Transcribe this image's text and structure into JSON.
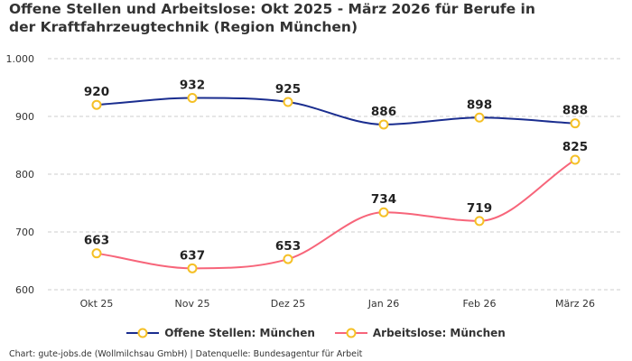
{
  "chart_data": {
    "type": "line",
    "title": "Offene Stellen und Arbeitslose: Okt 2025 - März 2026 für Berufe in der Kraftfahrzeugtechnik (Region München)",
    "categories": [
      "Okt 25",
      "Nov 25",
      "Dez 25",
      "Jan 26",
      "Feb 26",
      "März 26"
    ],
    "series": [
      {
        "name": "Offene Stellen: München",
        "values": [
          920,
          932,
          925,
          886,
          898,
          888
        ],
        "color": "#1a2d8f"
      },
      {
        "name": "Arbeitslose: München",
        "values": [
          663,
          637,
          653,
          734,
          719,
          825
        ],
        "color": "#f7657a"
      }
    ],
    "marker_color": "#f5c026",
    "ylim": [
      600,
      1000
    ],
    "yticks": [
      600,
      700,
      800,
      900,
      1000
    ],
    "ytick_labels": [
      "600",
      "700",
      "800",
      "900",
      "1.000"
    ],
    "grid": true,
    "legend_position": "bottom",
    "xlabel": "",
    "ylabel": ""
  },
  "footer": "Chart: gute-jobs.de (Wollmilchsau GmbH) | Datenquelle: Bundesagentur für Arbeit"
}
